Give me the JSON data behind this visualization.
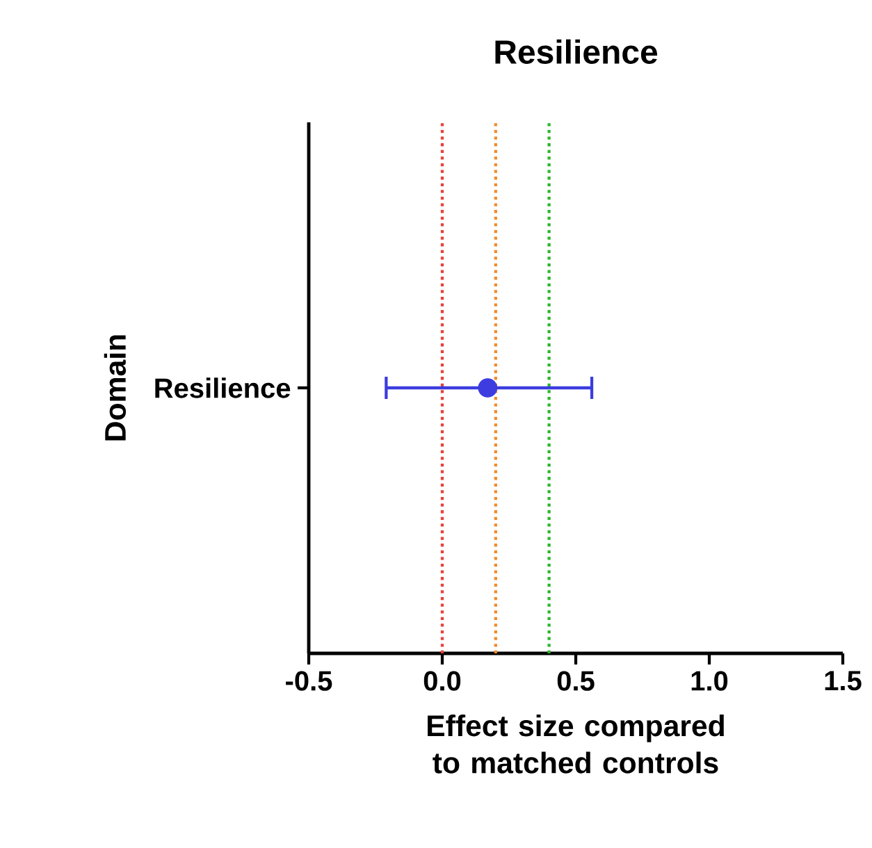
{
  "chart_data": {
    "type": "scatter",
    "title": "Resilience",
    "xlabel": "Effect size compared to matched controls",
    "ylabel": "Domain",
    "orientation": "horizontal",
    "categories": [
      "Resilience"
    ],
    "color": "#3c3ce0",
    "values": [
      0.17
    ],
    "errors": [
      [
        -0.21,
        0.56
      ]
    ],
    "xlim": [
      -0.5,
      1.5
    ],
    "xticks": [
      -0.5,
      {
        "value": 0,
        "label": "0.0"
      },
      0.5,
      {
        "value": 1,
        "label": "1.0"
      },
      1.5
    ],
    "marker": "circle",
    "ref_lines": [
      {
        "axis": "x",
        "value": 0,
        "color": "#e8413a",
        "line_style": "dotted"
      },
      {
        "axis": "x",
        "value": 0.2,
        "color": "#f08a2c",
        "line_style": "dotted"
      },
      {
        "axis": "x",
        "value": 0.4,
        "color": "#2bb52b",
        "line_style": "dotted"
      }
    ]
  }
}
